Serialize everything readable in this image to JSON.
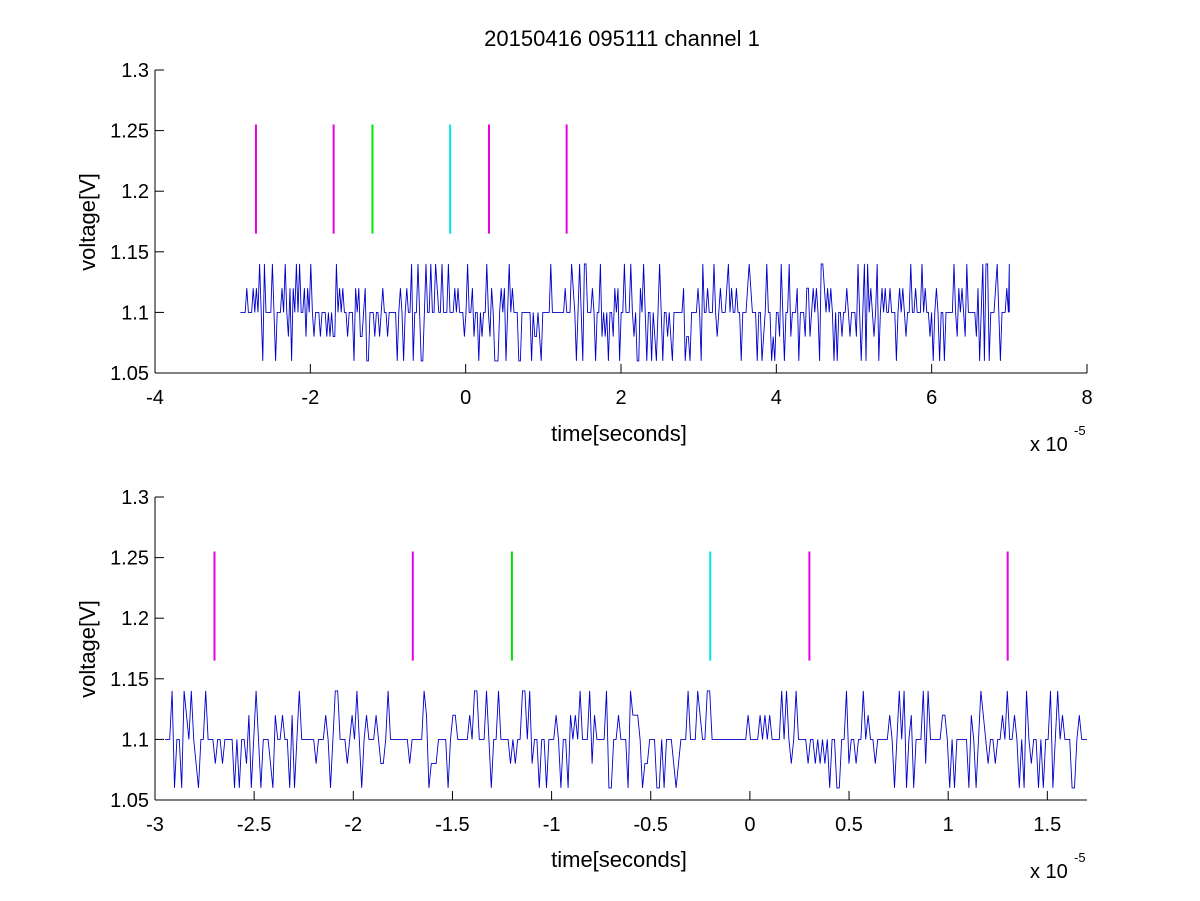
{
  "title": "20150416 095111 channel 1",
  "colors": {
    "trace": "#0000CC",
    "magenta": "#E600E6",
    "green": "#00E600",
    "cyan": "#00E6E6",
    "axes": "#000000"
  },
  "chart_data": [
    {
      "type": "line",
      "xlabel": "time[seconds]",
      "ylabel": "voltage[V]",
      "x_multiplier": "x 10",
      "x_exponent": "-5",
      "xlim": [
        -4,
        8
      ],
      "ylim": [
        1.05,
        1.3
      ],
      "xticks": [
        -4,
        -2,
        0,
        2,
        4,
        6,
        8
      ],
      "xtick_labels": [
        "-4",
        "-2",
        "0",
        "2",
        "4",
        "6",
        "8"
      ],
      "yticks": [
        1.05,
        1.1,
        1.15,
        1.2,
        1.25,
        1.3
      ],
      "ytick_labels": [
        "1.05",
        "1.1",
        "1.15",
        "1.2",
        "1.25",
        "1.3"
      ],
      "grid": false,
      "series": [
        {
          "description": "sampled voltage trace (blue), values switch among 1.06, 1.08, 1.1, 1.12, 1.14",
          "x_start": -2.9,
          "x_end": 7.0,
          "baseline": 1.1,
          "levels": [
            1.06,
            1.08,
            1.1,
            1.12,
            1.14
          ]
        }
      ],
      "markers": [
        {
          "x": -2.7,
          "y_range": [
            1.165,
            1.255
          ],
          "color": "magenta"
        },
        {
          "x": -1.7,
          "y_range": [
            1.165,
            1.255
          ],
          "color": "magenta"
        },
        {
          "x": -1.2,
          "y_range": [
            1.165,
            1.255
          ],
          "color": "green"
        },
        {
          "x": -0.2,
          "y_range": [
            1.165,
            1.255
          ],
          "color": "cyan"
        },
        {
          "x": 0.3,
          "y_range": [
            1.165,
            1.255
          ],
          "color": "magenta"
        },
        {
          "x": 1.3,
          "y_range": [
            1.165,
            1.255
          ],
          "color": "magenta"
        }
      ]
    },
    {
      "type": "line",
      "xlabel": "time[seconds]",
      "ylabel": "voltage[V]",
      "x_multiplier": "x 10",
      "x_exponent": "-5",
      "xlim": [
        -3,
        1.7
      ],
      "ylim": [
        1.05,
        1.3
      ],
      "xticks": [
        -3,
        -2.5,
        -2,
        -1.5,
        -1,
        -0.5,
        0,
        0.5,
        1,
        1.5
      ],
      "xtick_labels": [
        "-3",
        "-2.5",
        "-2",
        "-1.5",
        "-1",
        "-0.5",
        "0",
        "0.5",
        "1",
        "1.5"
      ],
      "yticks": [
        1.05,
        1.1,
        1.15,
        1.2,
        1.25,
        1.3
      ],
      "ytick_labels": [
        "1.05",
        "1.1",
        "1.15",
        "1.2",
        "1.25",
        "1.3"
      ],
      "grid": false,
      "series": [
        {
          "description": "zoomed sampled voltage trace (blue), values switch among 1.06, 1.08, 1.1, 1.12, 1.14",
          "x_start": -2.95,
          "x_end": 1.7,
          "baseline": 1.1,
          "levels": [
            1.06,
            1.08,
            1.1,
            1.12,
            1.14
          ]
        }
      ],
      "markers": [
        {
          "x": -2.7,
          "y_range": [
            1.165,
            1.255
          ],
          "color": "magenta"
        },
        {
          "x": -1.7,
          "y_range": [
            1.165,
            1.255
          ],
          "color": "magenta"
        },
        {
          "x": -1.2,
          "y_range": [
            1.165,
            1.255
          ],
          "color": "green"
        },
        {
          "x": -0.2,
          "y_range": [
            1.165,
            1.255
          ],
          "color": "cyan"
        },
        {
          "x": 0.3,
          "y_range": [
            1.165,
            1.255
          ],
          "color": "magenta"
        },
        {
          "x": 1.3,
          "y_range": [
            1.165,
            1.255
          ],
          "color": "magenta"
        }
      ]
    }
  ]
}
